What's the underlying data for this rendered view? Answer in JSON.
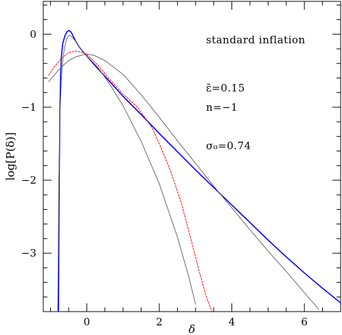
{
  "chart_data": {
    "type": "line",
    "title": "",
    "xlabel": "δ",
    "ylabel": "log[P(δ)]",
    "xlim": [
      -1.2,
      7.0
    ],
    "ylim": [
      -3.8,
      0.45
    ],
    "grid": false,
    "x_ticks": [
      0,
      2,
      4,
      6
    ],
    "x_tick_labels": [
      "0",
      "2",
      "4",
      "6"
    ],
    "y_ticks": [
      0,
      -1,
      -2,
      -3
    ],
    "y_tick_labels": [
      "0",
      "−1",
      "−2",
      "−3"
    ],
    "annotations": [
      {
        "text": "standard inflation"
      },
      {
        "text": "ε̃=0.15"
      },
      {
        "text": "n=−1"
      },
      {
        "text": "σ₀=0.74"
      }
    ],
    "series": [
      {
        "color": "#0000ff",
        "style": "solid",
        "width": 1.6,
        "x": [
          -0.78,
          -0.76,
          -0.74,
          -0.72,
          -0.7,
          -0.66,
          -0.6,
          -0.55,
          -0.5,
          -0.45,
          -0.4,
          -0.3,
          -0.2,
          0,
          0.3,
          0.6,
          1.0,
          1.5,
          2.0,
          2.5,
          3.0,
          3.5,
          4.0,
          4.5,
          5.0,
          5.5,
          6.0,
          6.5,
          7.0
        ],
        "y": [
          -3.8,
          -2.0,
          -1.0,
          -0.55,
          -0.3,
          -0.12,
          -0.02,
          0.03,
          0.05,
          0.04,
          0.0,
          -0.1,
          -0.18,
          -0.3,
          -0.47,
          -0.63,
          -0.85,
          -1.1,
          -1.36,
          -1.61,
          -1.86,
          -2.1,
          -2.34,
          -2.58,
          -2.82,
          -3.05,
          -3.27,
          -3.48,
          -3.68
        ]
      },
      {
        "color": "#666666",
        "style": "solid",
        "width": 1.0,
        "x": [
          -0.8,
          -0.77,
          -0.74,
          -0.7,
          -0.65,
          -0.6,
          -0.55,
          -0.5,
          -0.45,
          -0.4,
          -0.3,
          -0.2,
          0,
          0.3,
          0.6,
          1.0,
          1.5,
          2.0,
          2.5,
          2.8,
          3.0
        ],
        "y": [
          -3.8,
          -2.0,
          -1.1,
          -0.6,
          -0.3,
          -0.15,
          -0.06,
          -0.02,
          -0.02,
          -0.04,
          -0.1,
          -0.18,
          -0.3,
          -0.45,
          -0.66,
          -0.98,
          -1.47,
          -2.05,
          -2.78,
          -3.3,
          -3.7
        ]
      },
      {
        "color": "#666666",
        "style": "solid",
        "width": 1.0,
        "x": [
          -1.05,
          -0.9,
          -0.7,
          -0.5,
          -0.3,
          -0.1,
          0,
          0.2,
          0.5,
          1.0,
          1.5,
          2.0,
          2.5,
          3.0,
          3.5,
          4.0,
          4.5,
          5.0,
          5.5,
          6.0,
          6.4
        ],
        "y": [
          -0.65,
          -0.56,
          -0.45,
          -0.36,
          -0.31,
          -0.28,
          -0.27,
          -0.29,
          -0.36,
          -0.55,
          -0.83,
          -1.14,
          -1.46,
          -1.77,
          -2.08,
          -2.38,
          -2.68,
          -2.97,
          -3.25,
          -3.54,
          -3.77
        ]
      },
      {
        "color": "#ff0000",
        "style": "dashed",
        "width": 1.0,
        "x": [
          -1.05,
          -0.9,
          -0.7,
          -0.5,
          -0.3,
          -0.1,
          0,
          0.3,
          0.6,
          1.0,
          1.4,
          1.8,
          2.0,
          2.3,
          2.6,
          2.9,
          3.1,
          3.3,
          3.45
        ],
        "y": [
          -0.56,
          -0.45,
          -0.33,
          -0.25,
          -0.23,
          -0.25,
          -0.28,
          -0.42,
          -0.6,
          -0.82,
          -1.0,
          -1.28,
          -1.5,
          -1.86,
          -2.3,
          -2.86,
          -3.25,
          -3.6,
          -3.8
        ]
      }
    ]
  }
}
